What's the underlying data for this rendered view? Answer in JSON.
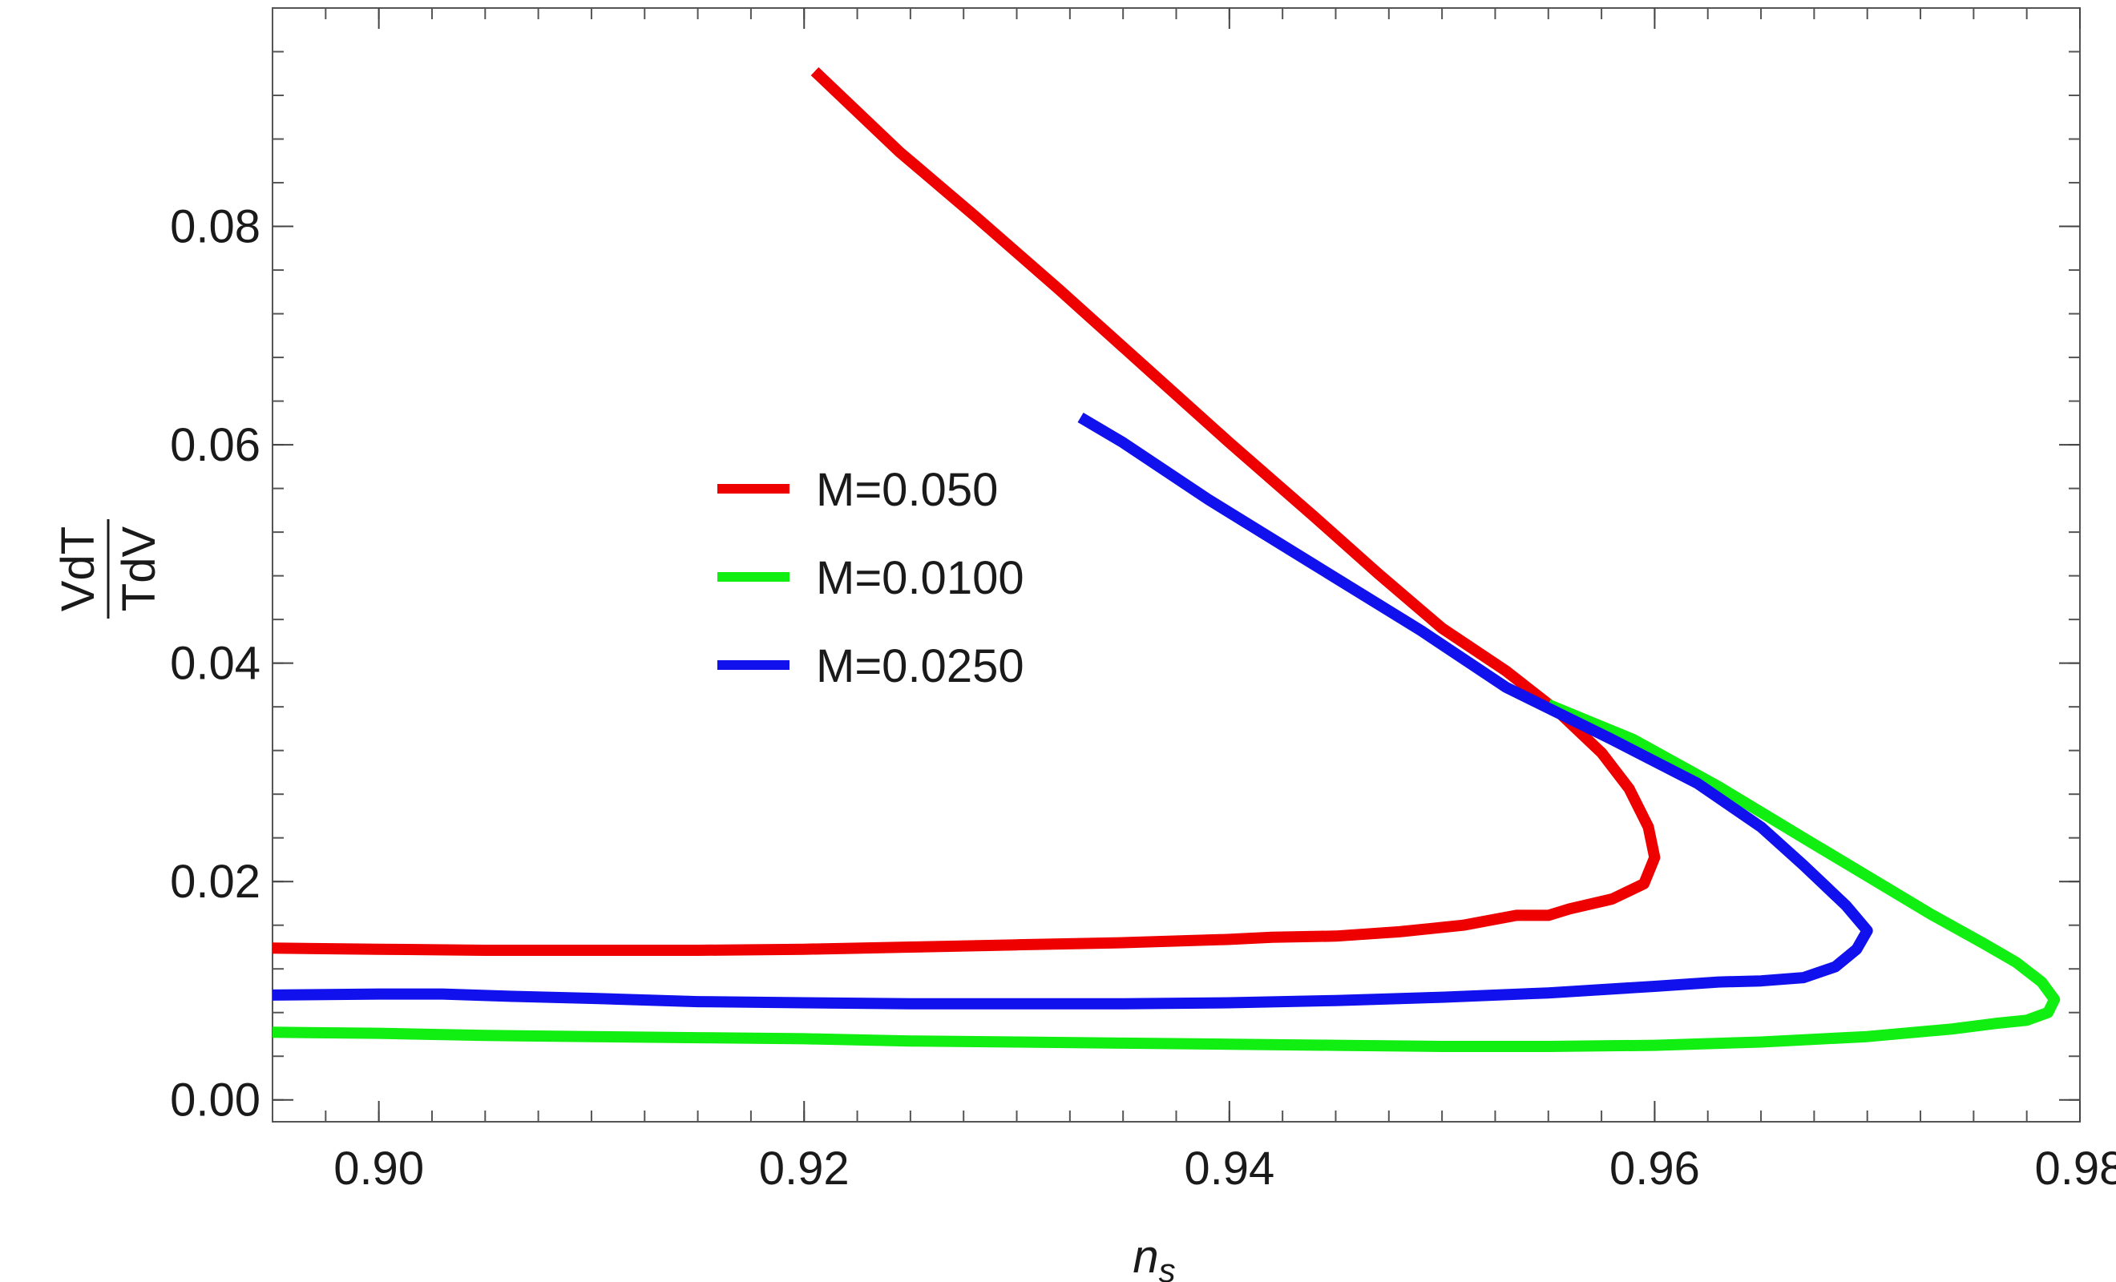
{
  "chart_data": {
    "type": "line",
    "title": "",
    "xlabel": "n",
    "xlabel_subscript": "s",
    "ylabel_numerator": "VdT",
    "ylabel_denominator": "TdV",
    "xlim": [
      0.895,
      0.98
    ],
    "ylim": [
      -0.002,
      0.1
    ],
    "x_ticks": [
      0.9,
      0.92,
      0.94,
      0.96,
      0.98
    ],
    "x_tick_labels": [
      "0.90",
      "0.92",
      "0.94",
      "0.96",
      "0.98"
    ],
    "y_ticks": [
      0.0,
      0.02,
      0.04,
      0.06,
      0.08
    ],
    "y_tick_labels": [
      "0.00",
      "0.02",
      "0.04",
      "0.06",
      "0.08"
    ],
    "grid": false,
    "legend_position": "center-left",
    "series": [
      {
        "name": "M=0.050",
        "color": "#ee0000",
        "points": [
          [
            0.895,
            0.0139
          ],
          [
            0.9,
            0.0138
          ],
          [
            0.905,
            0.0137
          ],
          [
            0.91,
            0.0137
          ],
          [
            0.915,
            0.0137
          ],
          [
            0.92,
            0.0138
          ],
          [
            0.925,
            0.014
          ],
          [
            0.93,
            0.0142
          ],
          [
            0.935,
            0.0144
          ],
          [
            0.94,
            0.0147
          ],
          [
            0.942,
            0.0149
          ],
          [
            0.945,
            0.015
          ],
          [
            0.948,
            0.0154
          ],
          [
            0.951,
            0.016
          ],
          [
            0.9535,
            0.0169
          ],
          [
            0.955,
            0.0169
          ],
          [
            0.956,
            0.0175
          ],
          [
            0.958,
            0.0184
          ],
          [
            0.9595,
            0.0198
          ],
          [
            0.96,
            0.0222
          ],
          [
            0.9597,
            0.025
          ],
          [
            0.9588,
            0.0285
          ],
          [
            0.9575,
            0.0318
          ],
          [
            0.9555,
            0.0355
          ],
          [
            0.953,
            0.0393
          ],
          [
            0.95,
            0.0432
          ],
          [
            0.947,
            0.0482
          ],
          [
            0.944,
            0.0534
          ],
          [
            0.94,
            0.0602
          ],
          [
            0.936,
            0.0672
          ],
          [
            0.932,
            0.0742
          ],
          [
            0.928,
            0.081
          ],
          [
            0.9245,
            0.0868
          ],
          [
            0.9205,
            0.0942
          ]
        ]
      },
      {
        "name": "M=0.0100",
        "color": "#11ee11",
        "points": [
          [
            0.895,
            0.0062
          ],
          [
            0.9,
            0.0061
          ],
          [
            0.905,
            0.0059
          ],
          [
            0.91,
            0.0058
          ],
          [
            0.915,
            0.0057
          ],
          [
            0.92,
            0.0056
          ],
          [
            0.925,
            0.0054
          ],
          [
            0.93,
            0.0053
          ],
          [
            0.935,
            0.0052
          ],
          [
            0.94,
            0.0051
          ],
          [
            0.945,
            0.005
          ],
          [
            0.95,
            0.0049
          ],
          [
            0.955,
            0.0049
          ],
          [
            0.96,
            0.005
          ],
          [
            0.965,
            0.0053
          ],
          [
            0.97,
            0.0058
          ],
          [
            0.974,
            0.0065
          ],
          [
            0.976,
            0.007
          ],
          [
            0.9775,
            0.0073
          ],
          [
            0.9785,
            0.008
          ],
          [
            0.9788,
            0.0092
          ],
          [
            0.9782,
            0.0108
          ],
          [
            0.977,
            0.0126
          ],
          [
            0.9755,
            0.0143
          ],
          [
            0.973,
            0.017
          ],
          [
            0.97,
            0.0205
          ],
          [
            0.967,
            0.024
          ],
          [
            0.963,
            0.0287
          ],
          [
            0.959,
            0.033
          ],
          [
            0.955,
            0.0362
          ]
        ]
      },
      {
        "name": "M=0.0250",
        "color": "#1111ee",
        "points": [
          [
            0.895,
            0.0096
          ],
          [
            0.9,
            0.0097
          ],
          [
            0.903,
            0.0097
          ],
          [
            0.906,
            0.0095
          ],
          [
            0.91,
            0.0093
          ],
          [
            0.915,
            0.009
          ],
          [
            0.92,
            0.0089
          ],
          [
            0.925,
            0.0088
          ],
          [
            0.93,
            0.0088
          ],
          [
            0.935,
            0.0088
          ],
          [
            0.94,
            0.0089
          ],
          [
            0.945,
            0.0091
          ],
          [
            0.95,
            0.0094
          ],
          [
            0.955,
            0.0098
          ],
          [
            0.96,
            0.0104
          ],
          [
            0.963,
            0.0108
          ],
          [
            0.965,
            0.0109
          ],
          [
            0.967,
            0.0112
          ],
          [
            0.9685,
            0.0122
          ],
          [
            0.9695,
            0.0138
          ],
          [
            0.97,
            0.0155
          ],
          [
            0.969,
            0.0178
          ],
          [
            0.967,
            0.0215
          ],
          [
            0.965,
            0.025
          ],
          [
            0.962,
            0.029
          ],
          [
            0.958,
            0.033
          ],
          [
            0.953,
            0.0378
          ],
          [
            0.949,
            0.043
          ],
          [
            0.944,
            0.049
          ],
          [
            0.939,
            0.055
          ],
          [
            0.935,
            0.0602
          ],
          [
            0.933,
            0.0625
          ]
        ]
      }
    ]
  }
}
